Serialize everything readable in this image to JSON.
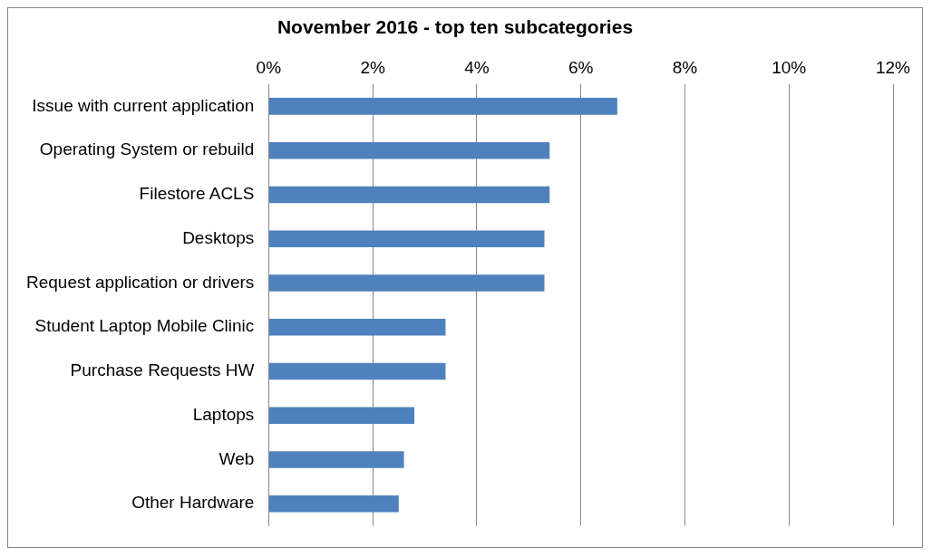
{
  "chart_data": {
    "type": "bar",
    "orientation": "horizontal",
    "title": "November 2016 - top ten subcategories",
    "categories": [
      "Issue with current application",
      "Operating System or rebuild",
      "Filestore ACLS",
      "Desktops",
      "Request application or drivers",
      "Student Laptop Mobile Clinic",
      "Purchase Requests HW",
      "Laptops",
      "Web",
      "Other Hardware"
    ],
    "values": [
      6.7,
      5.4,
      5.4,
      5.3,
      5.3,
      3.4,
      3.4,
      2.8,
      2.6,
      2.5
    ],
    "color": "#4f81bd",
    "xlim": [
      0,
      12
    ],
    "xticks": [
      {
        "value": 0,
        "label": "0%"
      },
      {
        "value": 2,
        "label": "2%"
      },
      {
        "value": 4,
        "label": "4%"
      },
      {
        "value": 6,
        "label": "6%"
      },
      {
        "value": 8,
        "label": "8%"
      },
      {
        "value": 10,
        "label": "10%"
      },
      {
        "value": 12,
        "label": "12%"
      }
    ],
    "grid": "x",
    "legend": false
  }
}
